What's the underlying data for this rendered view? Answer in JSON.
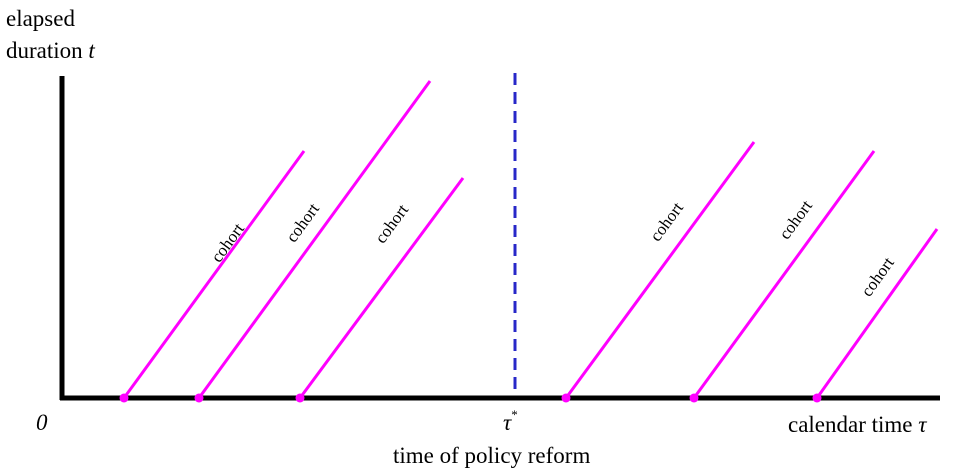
{
  "y_axis_label_line1": "elapsed",
  "y_axis_label_line2": "duration ",
  "y_axis_variable": "t",
  "origin_label": "0",
  "x_axis_label": "calendar time ",
  "x_axis_variable": "τ",
  "reform_marker_symbol": "τ",
  "reform_marker_superscript": "*",
  "reform_caption": "time of policy reform",
  "cohort_label": "cohort",
  "colors": {
    "axis": "#000000",
    "cohort": "#ff00ff",
    "reform_line": "#2828c8"
  },
  "cohort_count": 6
}
